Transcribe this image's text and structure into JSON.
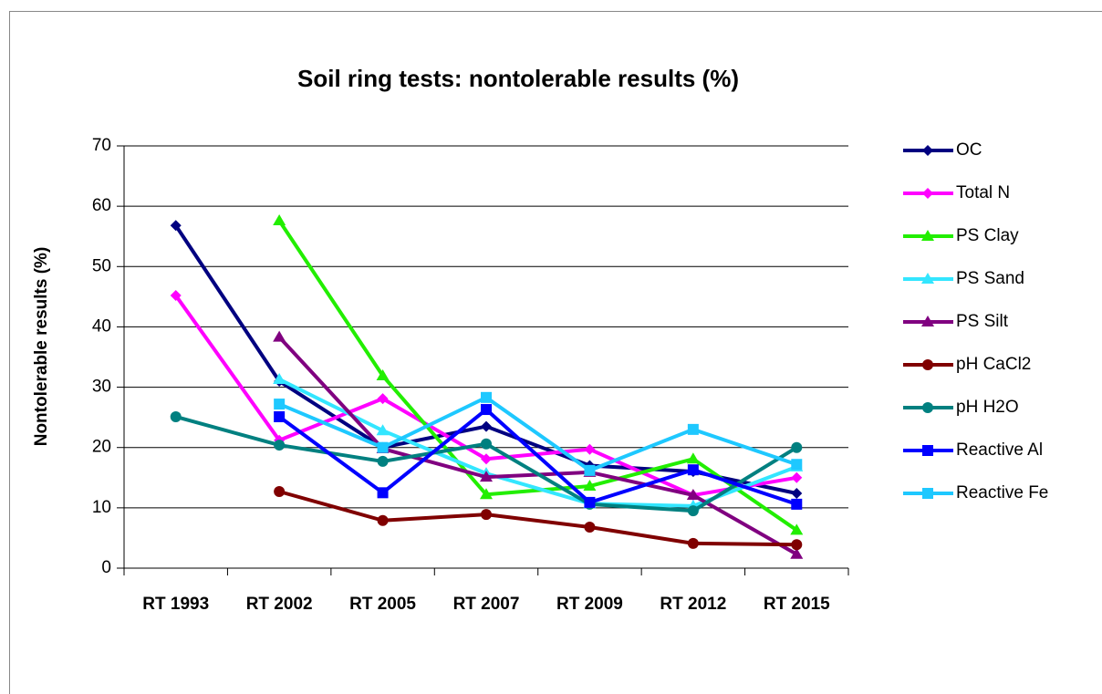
{
  "chart_data": {
    "type": "line",
    "title": "Soil ring tests: nontolerable results (%)",
    "y_label": "Nontolerable results (%)",
    "categories": [
      "RT 1993",
      "RT 2002",
      "RT 2005",
      "RT 2007",
      "RT 2009",
      "RT 2012",
      "RT 2015"
    ],
    "ylim": [
      0,
      70
    ],
    "yticks": [
      0,
      10,
      20,
      30,
      40,
      50,
      60,
      70
    ],
    "grid": true,
    "legend": "right",
    "series": [
      {
        "name": "OC",
        "color": "#000080",
        "marker": "diamond",
        "values": [
          56.8,
          31,
          20,
          23.5,
          17,
          16,
          12.4
        ]
      },
      {
        "name": "Total N",
        "color": "#ff00ff",
        "marker": "diamond",
        "values": [
          45.2,
          21.2,
          28.1,
          18.1,
          19.7,
          12.1,
          15
        ]
      },
      {
        "name": "PS Clay",
        "color": "#22ee00",
        "marker": "triangle",
        "values": [
          null,
          57.6,
          31.9,
          12.2,
          13.6,
          18.1,
          6.3
        ]
      },
      {
        "name": "PS Sand",
        "color": "#33e6ff",
        "marker": "triangle",
        "values": [
          null,
          31.3,
          22.8,
          15.7,
          10.7,
          10.3,
          16.8
        ]
      },
      {
        "name": "PS Silt",
        "color": "#800080",
        "marker": "triangle",
        "values": [
          null,
          38.3,
          19.8,
          15.1,
          15.9,
          12.1,
          2.3
        ]
      },
      {
        "name": "pH CaCl2",
        "color": "#800000",
        "marker": "circle",
        "values": [
          null,
          12.7,
          7.9,
          8.9,
          6.8,
          4.1,
          3.9
        ]
      },
      {
        "name": "pH H2O",
        "color": "#008080",
        "marker": "circle",
        "values": [
          25.1,
          20.4,
          17.7,
          20.6,
          10.6,
          9.5,
          20
        ]
      },
      {
        "name": "Reactive Al",
        "color": "#0000ff",
        "marker": "square",
        "values": [
          null,
          25.1,
          12.5,
          26.3,
          10.9,
          16.3,
          10.6
        ]
      },
      {
        "name": "Reactive Fe",
        "color": "#1ec8ff",
        "marker": "square",
        "values": [
          null,
          27.2,
          20,
          28.3,
          16.2,
          23,
          17.2
        ]
      }
    ]
  }
}
